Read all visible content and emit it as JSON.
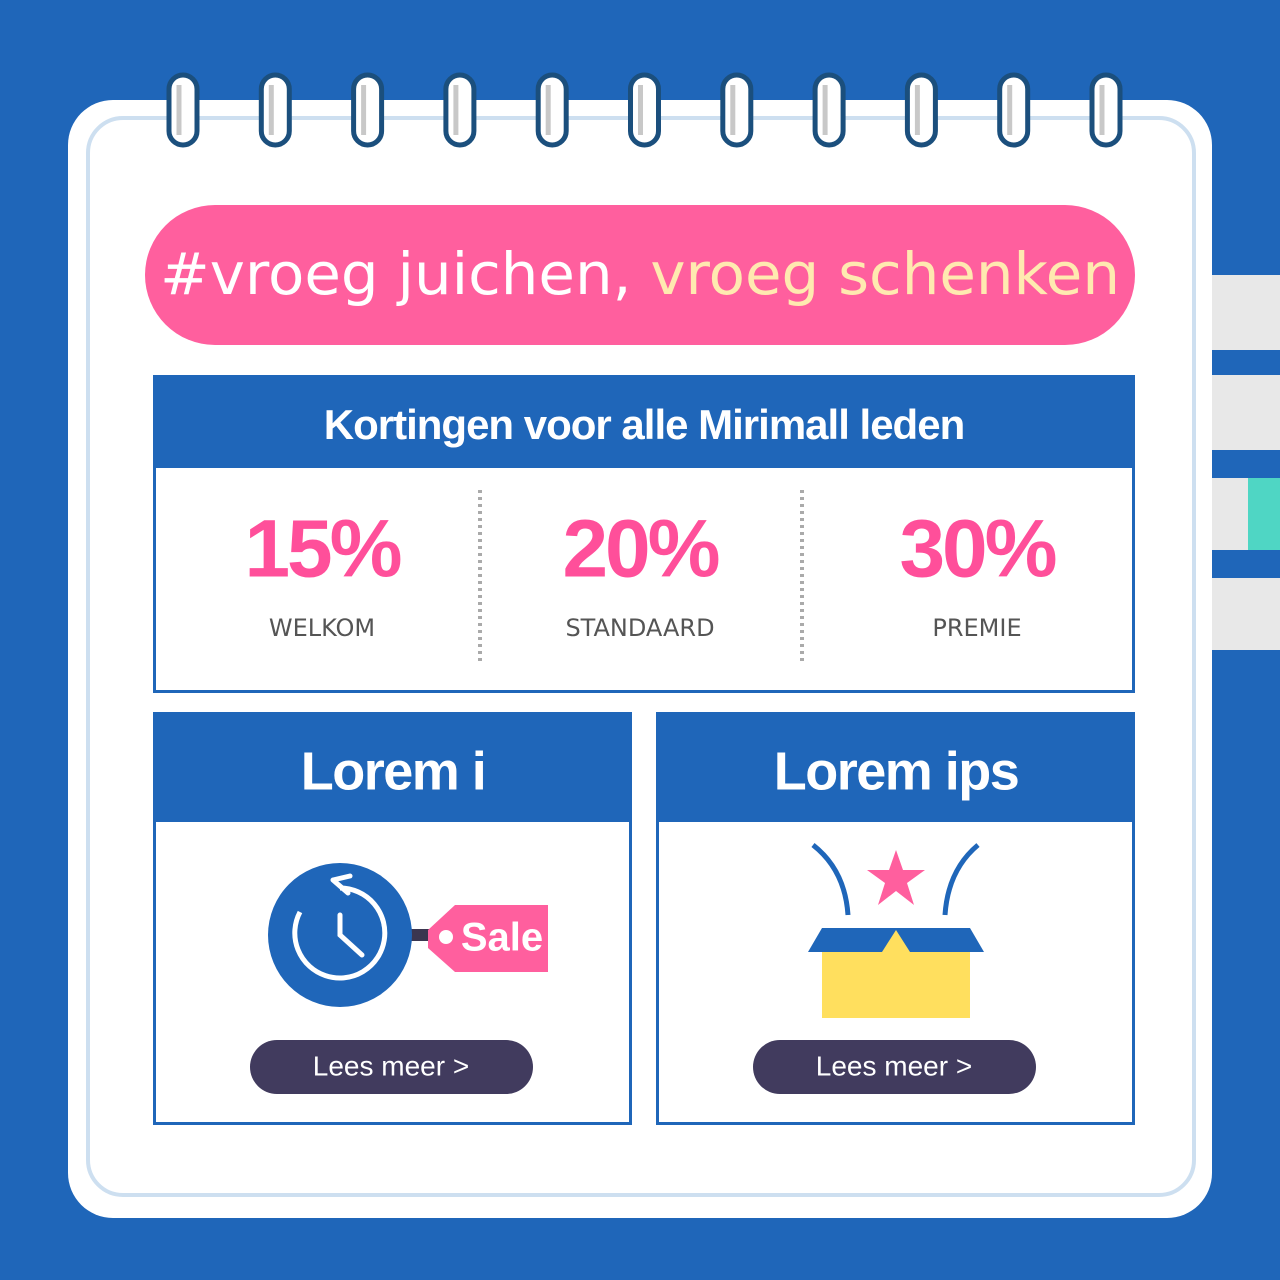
{
  "header": {
    "title_start": "#vroeg juichen,",
    "title_end": "vroeg schenken"
  },
  "discounts": {
    "title": "Kortingen voor alle Mirimall leden",
    "tiers": [
      {
        "value": "15%",
        "label": "WELKOM"
      },
      {
        "value": "20%",
        "label": "STANDAARD"
      },
      {
        "value": "30%",
        "label": "PREMIE"
      }
    ]
  },
  "cards": [
    {
      "title": "Lorem i",
      "tag": "Sale",
      "button": "Lees meer >"
    },
    {
      "title": "Lorem ips",
      "button": "Lees meer >"
    }
  ]
}
